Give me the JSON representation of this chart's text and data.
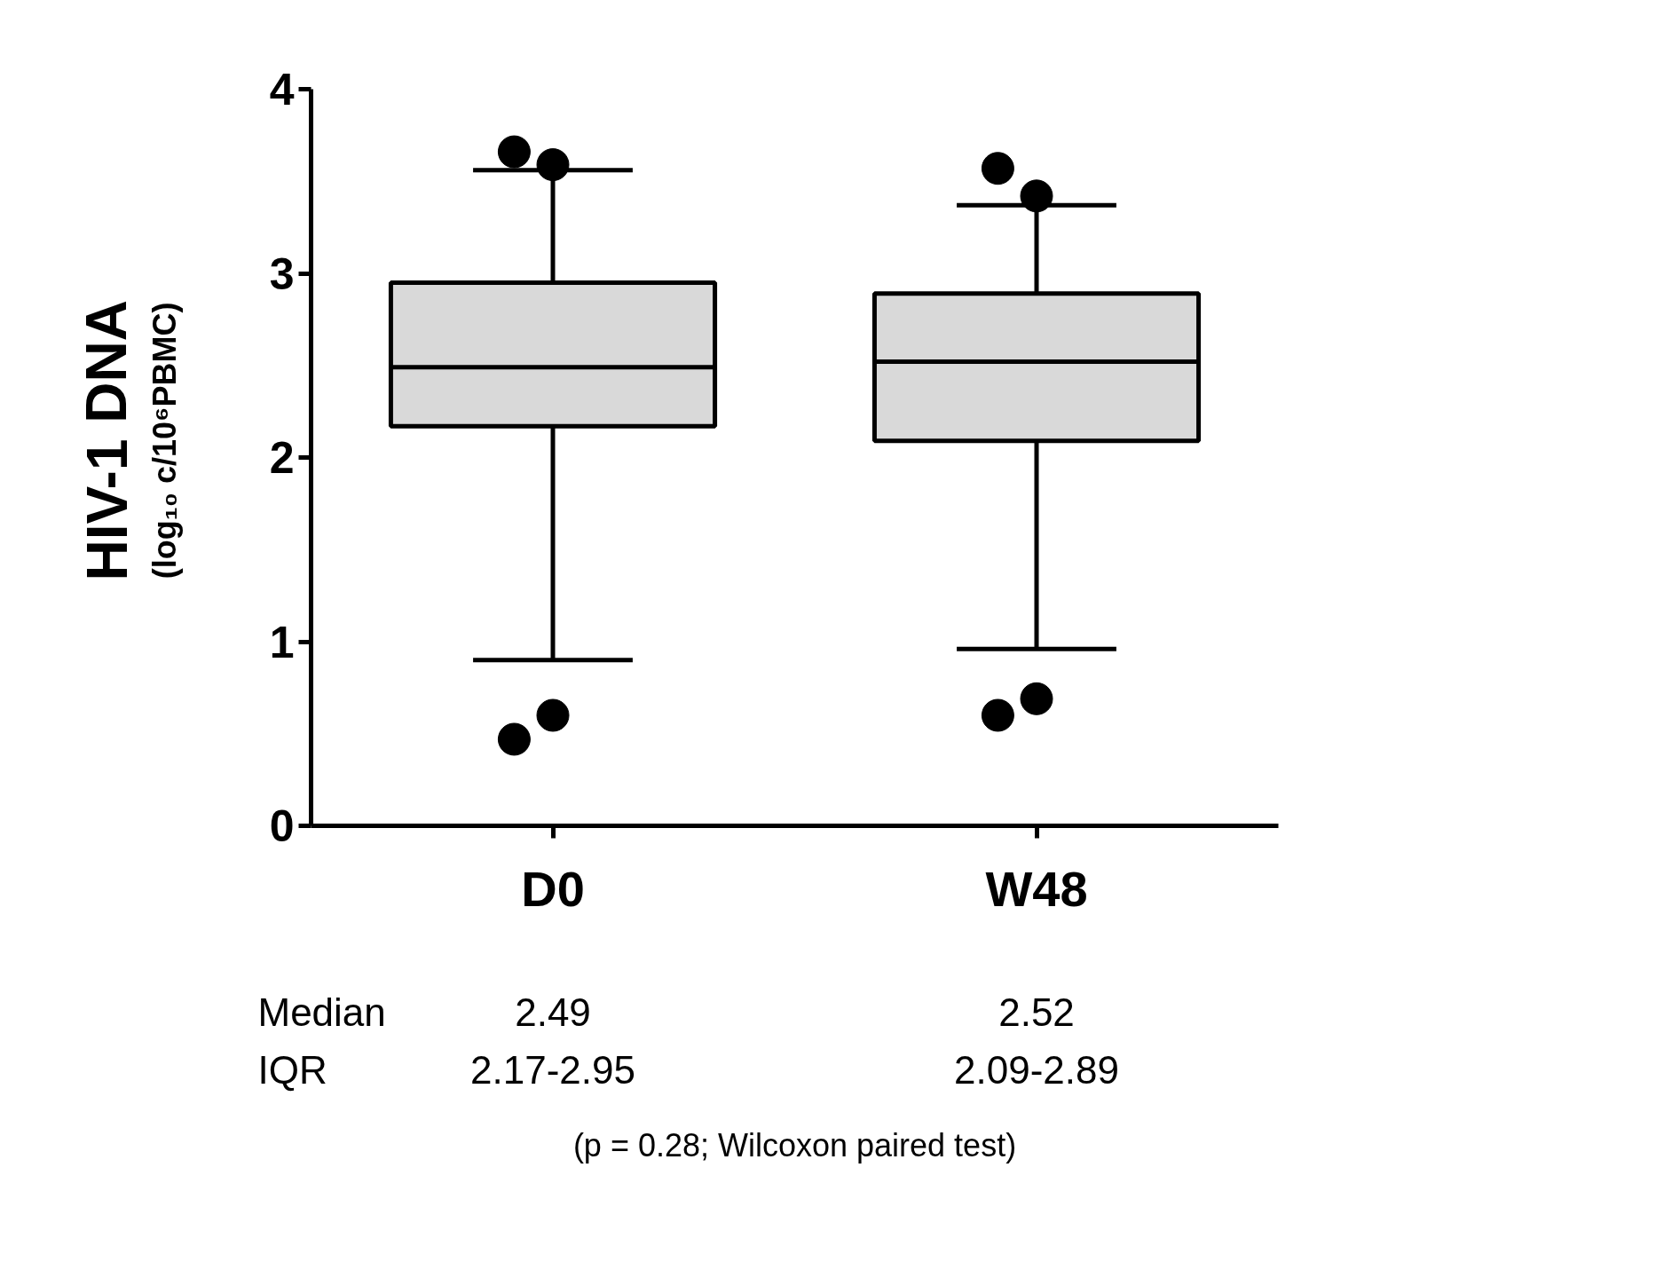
{
  "chart_data": {
    "type": "box",
    "ylabel": "HIV-1 DNA\n(log₁₀ c/10⁶PBMC)",
    "categories": [
      "D0",
      "W48"
    ],
    "boxes": [
      {
        "low": 0.9,
        "q1": 2.17,
        "median": 2.49,
        "q3": 2.95,
        "high": 3.56,
        "outliers": [
          3.66,
          3.59,
          0.47,
          0.6
        ]
      },
      {
        "low": 0.96,
        "q1": 2.09,
        "median": 2.52,
        "q3": 2.89,
        "high": 3.37,
        "outliers": [
          3.57,
          3.42,
          0.6,
          0.69
        ]
      }
    ],
    "color": "#d9d9d9",
    "ylim": [
      0,
      4
    ],
    "yticks": [
      0,
      1,
      2,
      3,
      4
    ],
    "grid": false,
    "annotations": [
      "Median",
      "IQR",
      "2.49",
      "2.17-2.95",
      "2.52",
      "2.09-2.89",
      "(p = 0.28; Wilcoxon paired test)"
    ]
  }
}
